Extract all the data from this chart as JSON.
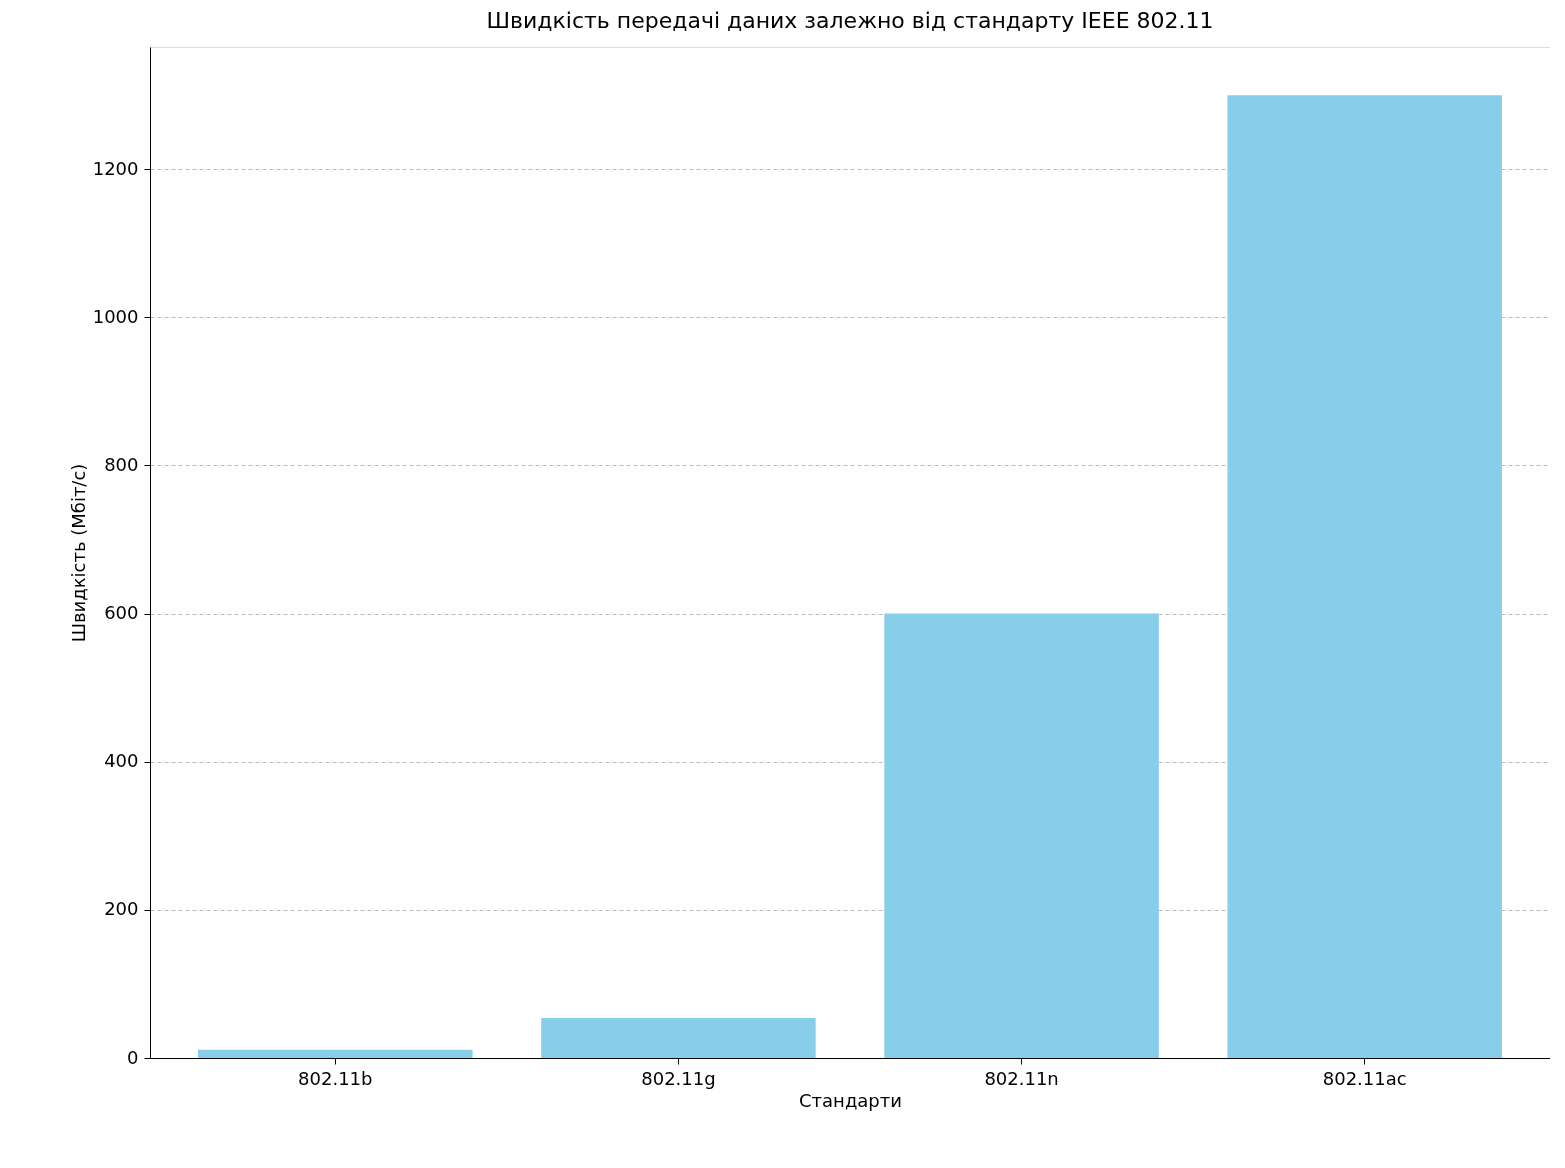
{
  "chart_data": {
    "type": "bar",
    "title": "Швидкість передачі даних залежно від стандарту IEEE 802.11",
    "xlabel": "Стандарти",
    "ylabel": "Швидкість (Мбіт/с)",
    "categories": [
      "802.11b",
      "802.11g",
      "802.11n",
      "802.11ac"
    ],
    "values": [
      11,
      54,
      600,
      1300
    ],
    "color": "#87ceeb",
    "ylim": [
      0,
      1365
    ],
    "yticks": [
      0,
      200,
      400,
      600,
      800,
      1000,
      1200
    ],
    "grid": "y"
  }
}
